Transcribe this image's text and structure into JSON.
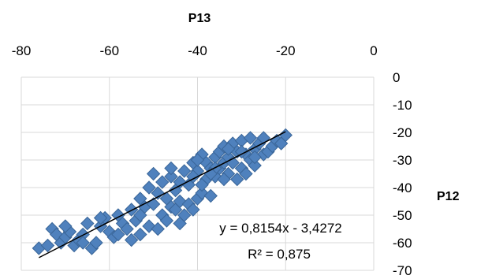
{
  "chart_data": {
    "type": "scatter",
    "title": "",
    "xlabel": "P13",
    "ylabel": "P12",
    "x_axis_position": "top",
    "y_axis_position": "right",
    "xlim": [
      -80,
      0
    ],
    "ylim": [
      -70,
      0
    ],
    "x_ticks": [
      "-80",
      "-60",
      "-40",
      "-20",
      "0"
    ],
    "y_ticks": [
      "0",
      "-10",
      "-20",
      "-30",
      "-40",
      "-50",
      "-60",
      "-70"
    ],
    "grid": true,
    "legend": "none",
    "marker": "diamond",
    "colors": {
      "marker": "#4F81BD",
      "marker_edge": "#3A6699",
      "trendline": "#000000",
      "grid": "#D9D9D9"
    },
    "trendline": {
      "type": "linear",
      "slope": 0.8154,
      "intercept": -3.4272,
      "x_range": [
        -76,
        -20
      ],
      "equation": "y = 0,8154x - 3,4272",
      "r_squared": "R² = 0,875"
    },
    "points": [
      [
        -76,
        -62
      ],
      [
        -74,
        -61
      ],
      [
        -73,
        -55
      ],
      [
        -72,
        -57
      ],
      [
        -71,
        -60
      ],
      [
        -70,
        -58
      ],
      [
        -69,
        -56
      ],
      [
        -68,
        -61
      ],
      [
        -67,
        -59
      ],
      [
        -66,
        -57
      ],
      [
        -65,
        -53
      ],
      [
        -64,
        -62
      ],
      [
        -63,
        -60
      ],
      [
        -62,
        -54
      ],
      [
        -61,
        -51
      ],
      [
        -60,
        -56
      ],
      [
        -59,
        -58
      ],
      [
        -58,
        -50
      ],
      [
        -57,
        -53
      ],
      [
        -56,
        -55
      ],
      [
        -55,
        -48
      ],
      [
        -55,
        -59
      ],
      [
        -54,
        -52
      ],
      [
        -53,
        -44
      ],
      [
        -53,
        -57
      ],
      [
        -52,
        -47
      ],
      [
        -51,
        -54
      ],
      [
        -51,
        -40
      ],
      [
        -50,
        -35
      ],
      [
        -50,
        -46
      ],
      [
        -49,
        -42
      ],
      [
        -49,
        -55
      ],
      [
        -48,
        -38
      ],
      [
        -48,
        -50
      ],
      [
        -47,
        -44
      ],
      [
        -47,
        -52
      ],
      [
        -46,
        -47
      ],
      [
        -46,
        -36
      ],
      [
        -45,
        -48
      ],
      [
        -45,
        -41
      ],
      [
        -44,
        -53
      ],
      [
        -44,
        -45
      ],
      [
        -43,
        -50
      ],
      [
        -42,
        -39
      ],
      [
        -42,
        -46
      ],
      [
        -41,
        -48
      ],
      [
        -41,
        -31
      ],
      [
        -40,
        -44
      ],
      [
        -40,
        -34
      ],
      [
        -39,
        -28
      ],
      [
        -39,
        -42
      ],
      [
        -38,
        -37
      ],
      [
        -38,
        -31
      ],
      [
        -37,
        -33
      ],
      [
        -37,
        -43
      ],
      [
        -36,
        -29
      ],
      [
        -36,
        -36
      ],
      [
        -35,
        -27
      ],
      [
        -35,
        -33
      ],
      [
        -34,
        -31
      ],
      [
        -34,
        -25
      ],
      [
        -33,
        -35
      ],
      [
        -33,
        -29
      ],
      [
        -32,
        -24
      ],
      [
        -32,
        -31
      ],
      [
        -31,
        -37
      ],
      [
        -31,
        -27
      ],
      [
        -30,
        -33
      ],
      [
        -30,
        -23
      ],
      [
        -29,
        -28
      ],
      [
        -29,
        -35
      ],
      [
        -28,
        -22
      ],
      [
        -28,
        -30
      ],
      [
        -27,
        -26
      ],
      [
        -27,
        -32
      ],
      [
        -26,
        -24
      ],
      [
        -25,
        -28
      ],
      [
        -25,
        -22
      ],
      [
        -24,
        -27
      ],
      [
        -23,
        -25
      ],
      [
        -22,
        -23
      ],
      [
        -21,
        -24
      ],
      [
        -20,
        -21
      ],
      [
        -44,
        -38
      ],
      [
        -46,
        -33
      ],
      [
        -53,
        -50
      ],
      [
        -58,
        -57
      ],
      [
        -62,
        -51
      ],
      [
        -66,
        -60
      ],
      [
        -70,
        -54
      ],
      [
        -43,
        -34
      ],
      [
        -41,
        -36
      ],
      [
        -39,
        -39
      ],
      [
        -36,
        -33
      ],
      [
        -33,
        -26
      ],
      [
        -30,
        -27
      ],
      [
        -27,
        -29
      ],
      [
        -34,
        -37
      ],
      [
        -37,
        -35
      ],
      [
        -40,
        -30
      ]
    ]
  }
}
